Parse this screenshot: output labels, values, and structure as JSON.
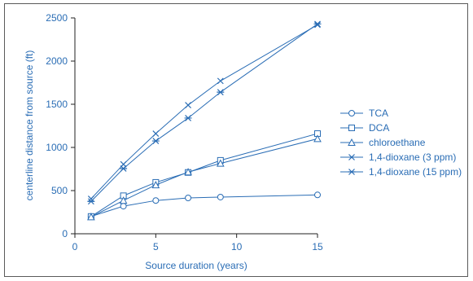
{
  "chart_data": {
    "type": "line",
    "title": "",
    "xlabel": "Source duration (years)",
    "ylabel": "centerline distance from source (ft)",
    "xlim": [
      0,
      15
    ],
    "ylim": [
      0,
      2500
    ],
    "xticks": [
      0,
      5,
      10,
      15
    ],
    "yticks": [
      0,
      500,
      1000,
      1500,
      2000,
      2500
    ],
    "grid": false,
    "legend_position": "right",
    "colors": {
      "series": "#2a6db5",
      "axis": "#222222",
      "text": "#2a6db5"
    },
    "series": [
      {
        "name": "TCA",
        "marker": "circle",
        "x": [
          1,
          3,
          5,
          7,
          9,
          15
        ],
        "y": [
          200,
          320,
          385,
          415,
          425,
          450
        ]
      },
      {
        "name": "DCA",
        "marker": "square",
        "x": [
          1,
          3,
          5,
          7,
          9,
          15
        ],
        "y": [
          200,
          440,
          595,
          710,
          850,
          1160
        ]
      },
      {
        "name": "chloroethane",
        "marker": "triangle",
        "x": [
          1,
          3,
          5,
          7,
          9,
          15
        ],
        "y": [
          195,
          385,
          565,
          715,
          815,
          1100
        ]
      },
      {
        "name": "1,4-dioxane (3 ppm)",
        "marker": "x",
        "x": [
          1,
          3,
          5,
          7,
          9,
          15
        ],
        "y": [
          405,
          805,
          1160,
          1490,
          1770,
          2420
        ]
      },
      {
        "name": "1,4-dioxane (15 ppm)",
        "marker": "star",
        "x": [
          1,
          3,
          5,
          7,
          9,
          15
        ],
        "y": [
          375,
          755,
          1075,
          1340,
          1640,
          2430
        ]
      }
    ]
  }
}
